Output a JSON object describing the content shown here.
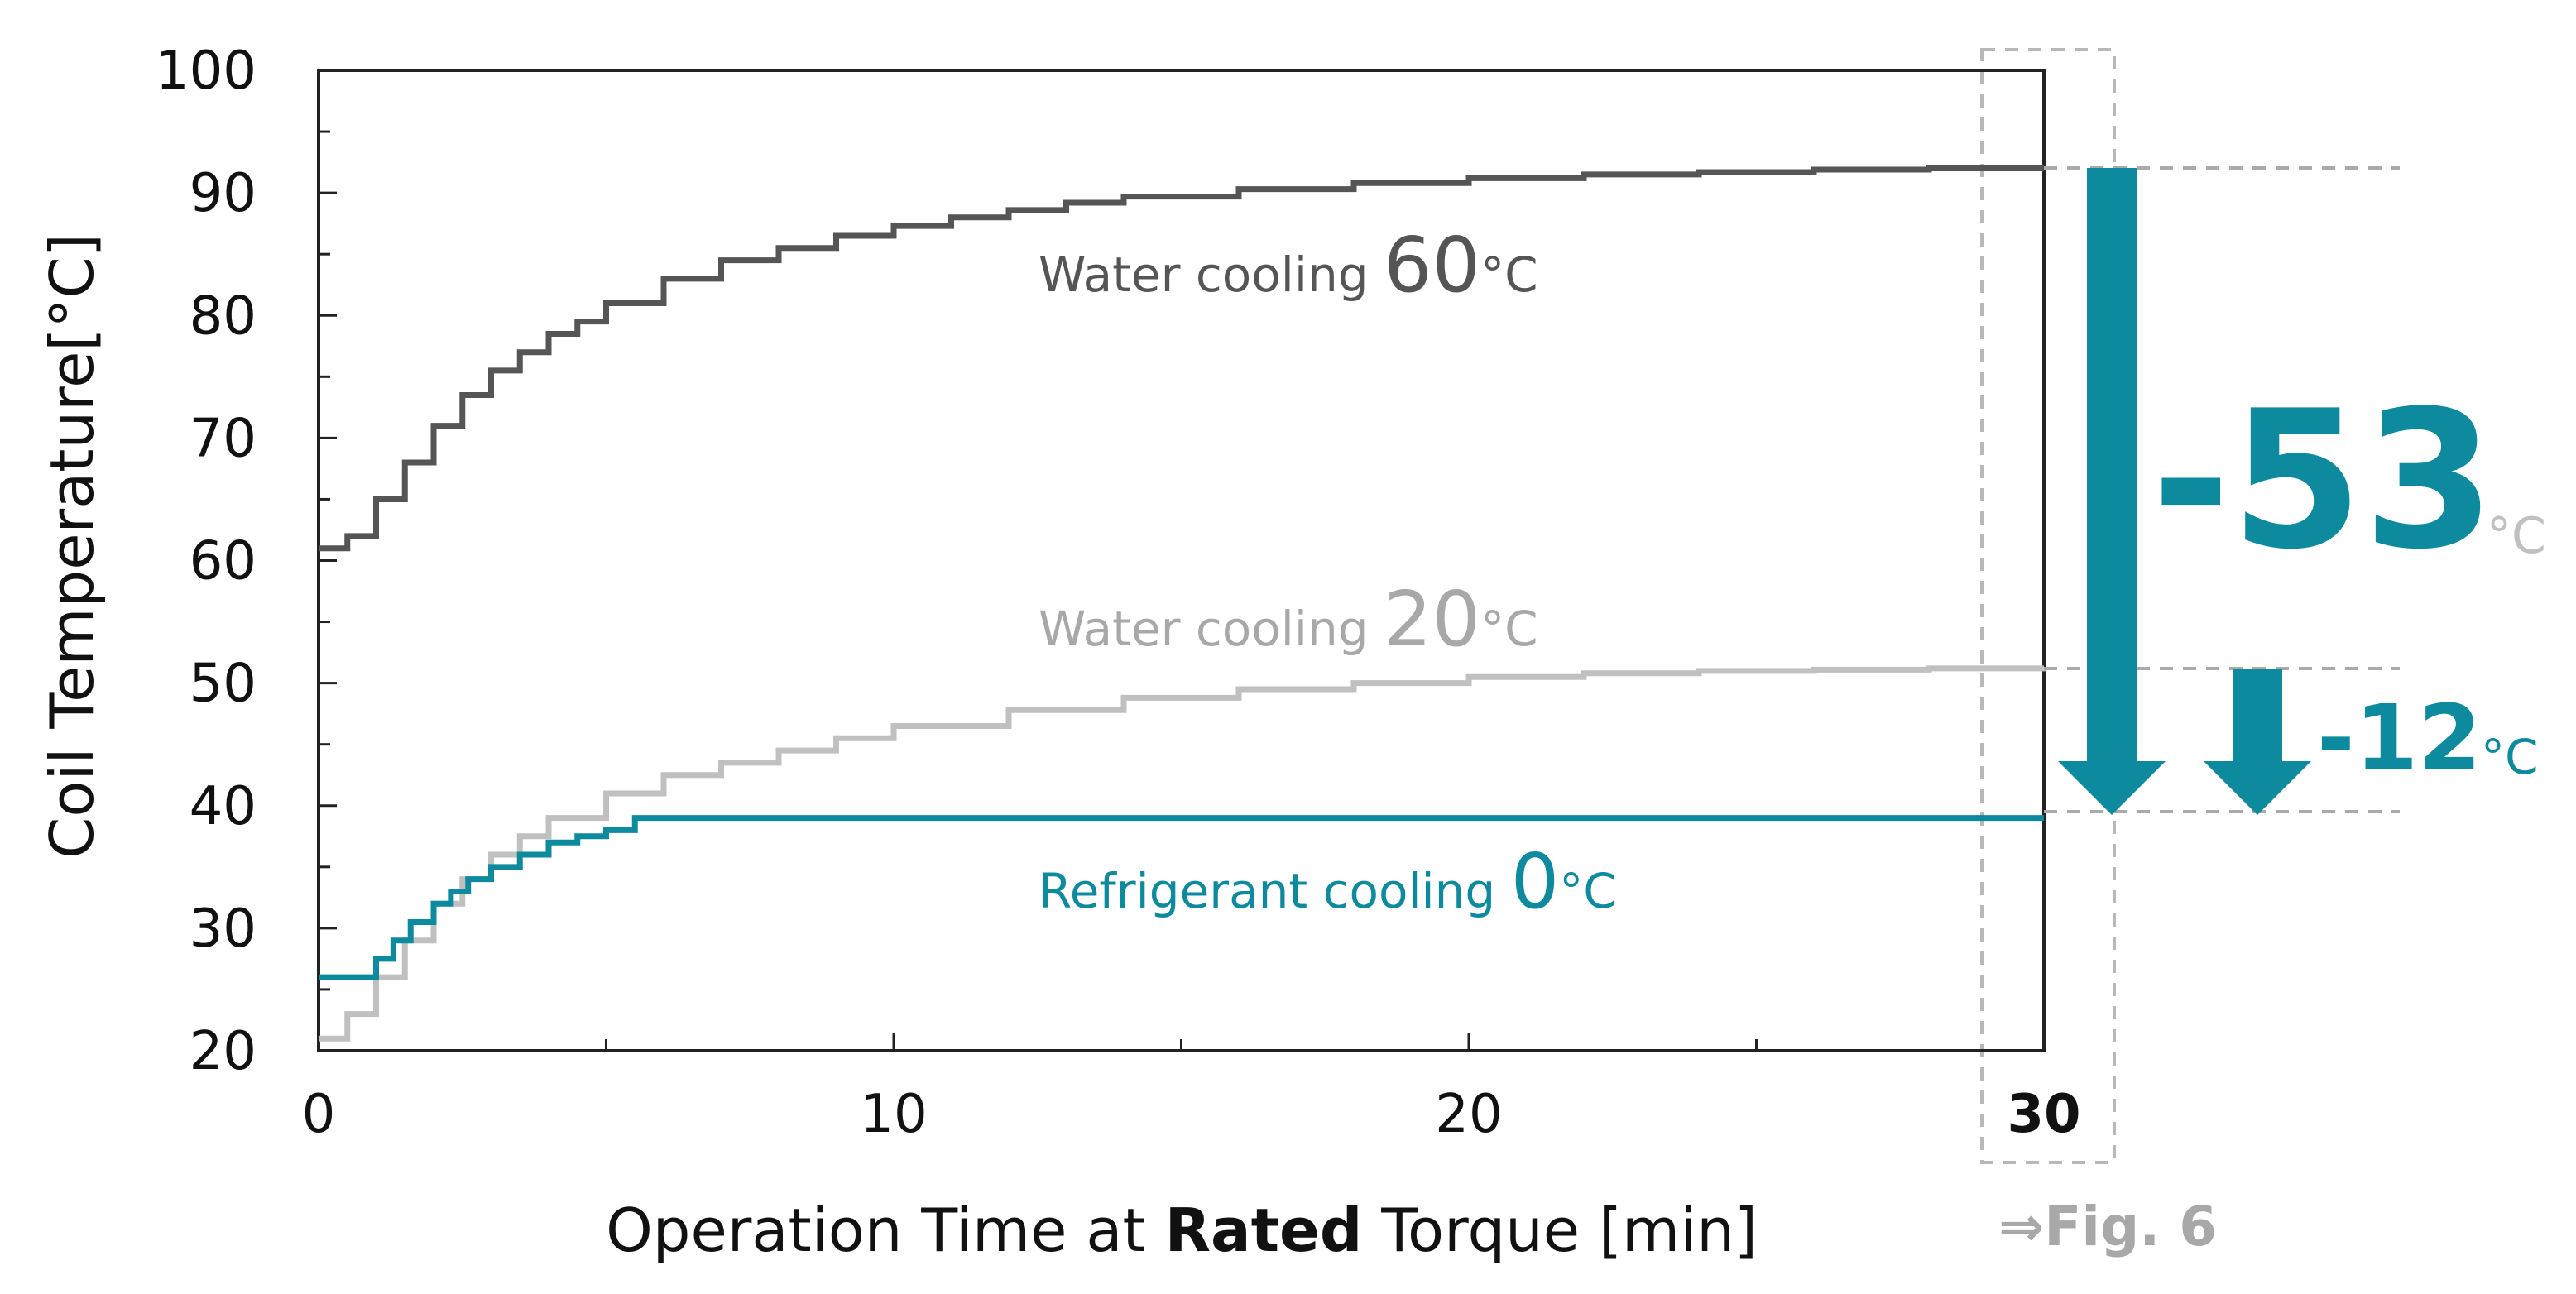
{
  "chart_data": {
    "type": "line",
    "title": "",
    "xlabel": {
      "prefix": "Operation Time at ",
      "bold": "Rated",
      "suffix": " Torque [min]"
    },
    "ylabel": "Coil Temperature[°C]",
    "xlim": [
      0,
      30
    ],
    "ylim": [
      20,
      100
    ],
    "x_ticks": [
      "0",
      "10",
      "20",
      "30"
    ],
    "y_ticks": [
      "20",
      "30",
      "40",
      "50",
      "60",
      "70",
      "80",
      "90",
      "100"
    ],
    "series": [
      {
        "name": "Water cooling 60°C",
        "label_text": "Water cooling ",
        "label_num": "60",
        "label_unit": "°C",
        "color": "#555555",
        "x": [
          0,
          0.5,
          1,
          1.5,
          2,
          2.5,
          3,
          3.5,
          4,
          4.5,
          5,
          6,
          7,
          8,
          9,
          10,
          11,
          12,
          13,
          14,
          16,
          18,
          20,
          22,
          24,
          26,
          28,
          30
        ],
        "y": [
          61,
          62,
          65,
          68,
          71,
          73.5,
          75.5,
          77,
          78.5,
          79.5,
          81,
          83,
          84.5,
          85.5,
          86.5,
          87.3,
          88,
          88.6,
          89.2,
          89.7,
          90.3,
          90.8,
          91.2,
          91.5,
          91.7,
          91.9,
          92,
          92
        ]
      },
      {
        "name": "Water cooling 20°C",
        "label_text": "Water cooling ",
        "label_num": "20",
        "label_unit": "°C",
        "color": "#c0c0c0",
        "x": [
          0,
          0.5,
          1,
          1.5,
          2,
          2.5,
          3,
          3.5,
          4,
          5,
          6,
          7,
          8,
          9,
          10,
          12,
          14,
          16,
          18,
          20,
          22,
          24,
          26,
          28,
          30
        ],
        "y": [
          21,
          23,
          26,
          29,
          32,
          34,
          36,
          37.5,
          39,
          41,
          42.5,
          43.5,
          44.5,
          45.5,
          46.5,
          47.8,
          48.8,
          49.5,
          50,
          50.5,
          50.8,
          51,
          51.1,
          51.2,
          51.3
        ]
      },
      {
        "name": "Refrigerant cooling 0°C",
        "label_text": "Refrigerant cooling ",
        "label_num": "0",
        "label_unit": "°C",
        "color": "#0e8a9e",
        "x": [
          0,
          0.7,
          1,
          1.3,
          1.6,
          2,
          2.3,
          2.6,
          3,
          3.5,
          4,
          4.5,
          5,
          5.5,
          30
        ],
        "y": [
          26,
          26,
          27.5,
          29,
          30.5,
          32,
          33,
          34,
          35,
          36,
          37,
          37.5,
          38,
          39,
          39
        ]
      }
    ],
    "annotations": {
      "delta_big": {
        "value": "-53",
        "unit": "°C"
      },
      "delta_small": {
        "value": "-12",
        "unit": "°C"
      },
      "fig_ref": "⇒Fig. 6"
    },
    "accent_color": "#0e8a9e"
  }
}
